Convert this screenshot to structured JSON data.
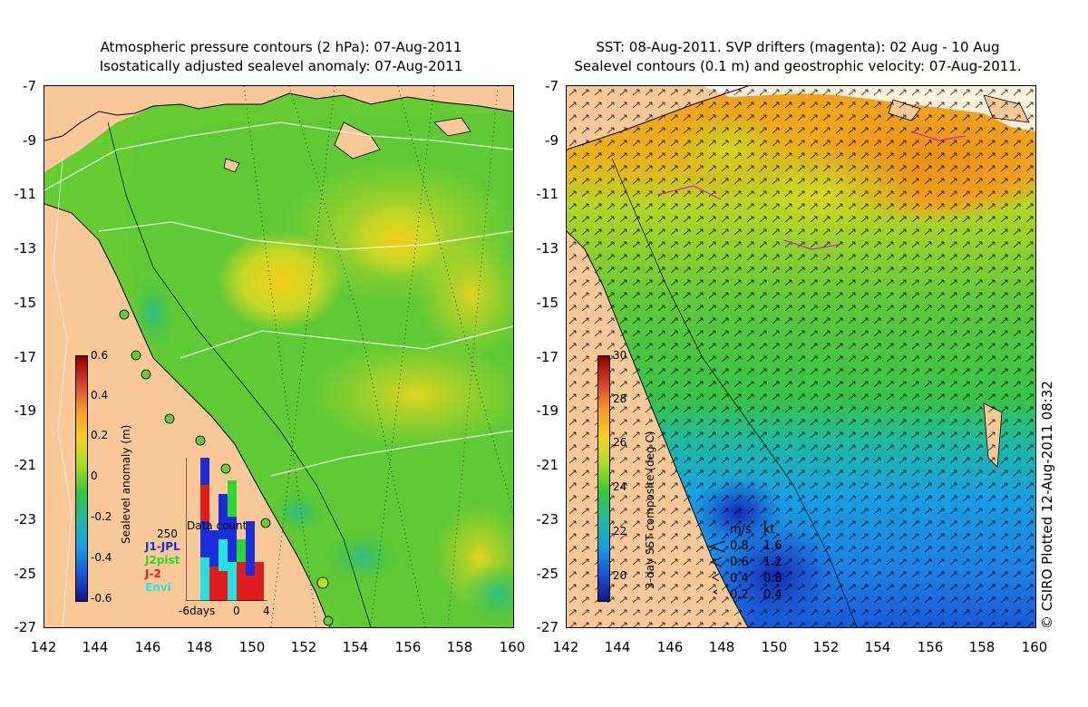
{
  "left_panel": {
    "title_line1": "Atmospheric pressure contours (2 hPa): 07-Aug-2011",
    "title_line2": "Isostatically adjusted sealevel anomaly: 07-Aug-2011",
    "colorbar": {
      "label": "Sealevel anomaly (m)",
      "ticks": [
        "0.6",
        "0.4",
        "0.2",
        "0",
        "-0.2",
        "-0.4",
        "-0.6"
      ],
      "colors": [
        "#8b0000",
        "#d2452a",
        "#f39b2d",
        "#f7d21e",
        "#a6dc2a",
        "#35c53a",
        "#20b9a4",
        "#1a9ee0",
        "#1956d8",
        "#13158a"
      ]
    },
    "datacount": {
      "title": "Data count",
      "max_label": "250",
      "x_labels": [
        "-6days",
        "0",
        "4"
      ],
      "missions": [
        {
          "name": "J1-JPL",
          "color": "#1a2dd8"
        },
        {
          "name": "J2pist",
          "color": "#2ed92e"
        },
        {
          "name": "J-2",
          "color": "#e01b1b"
        },
        {
          "name": "Envi",
          "color": "#24e2e2"
        }
      ]
    }
  },
  "right_panel": {
    "title_line1": "SST: 08-Aug-2011. SVP drifters (magenta): 02 Aug - 10 Aug",
    "title_line2": "Sealevel contours (0.1 m) and geostrophic velocity: 07-Aug-2011.",
    "colorbar": {
      "label": "3-day SST composite (deg C)",
      "ticks": [
        "30",
        "28",
        "26",
        "24",
        "22",
        "20"
      ],
      "colors": [
        "#8b0000",
        "#d2452a",
        "#f39b2d",
        "#f7d21e",
        "#a6dc2a",
        "#35c53a",
        "#20b9a4",
        "#1a9ee0",
        "#1956d8",
        "#13158a"
      ]
    },
    "vector_key": {
      "header_ms": "m/s",
      "header_kt": "kt",
      "rows": [
        {
          "ms": "0.8",
          "kt": "1.6"
        },
        {
          "ms": "0.6",
          "kt": "1.2"
        },
        {
          "ms": "0.4",
          "kt": "0.8"
        },
        {
          "ms": "0.2",
          "kt": "0.4"
        }
      ]
    }
  },
  "axes": {
    "y_ticks": [
      "-7",
      "-9",
      "-11",
      "-13",
      "-15",
      "-17",
      "-19",
      "-21",
      "-23",
      "-25",
      "-27"
    ],
    "x_ticks": [
      "142",
      "144",
      "146",
      "148",
      "150",
      "152",
      "154",
      "156",
      "158",
      "160"
    ]
  },
  "credit": "© CSIRO Plotted 12-Aug-2011 08:32"
}
